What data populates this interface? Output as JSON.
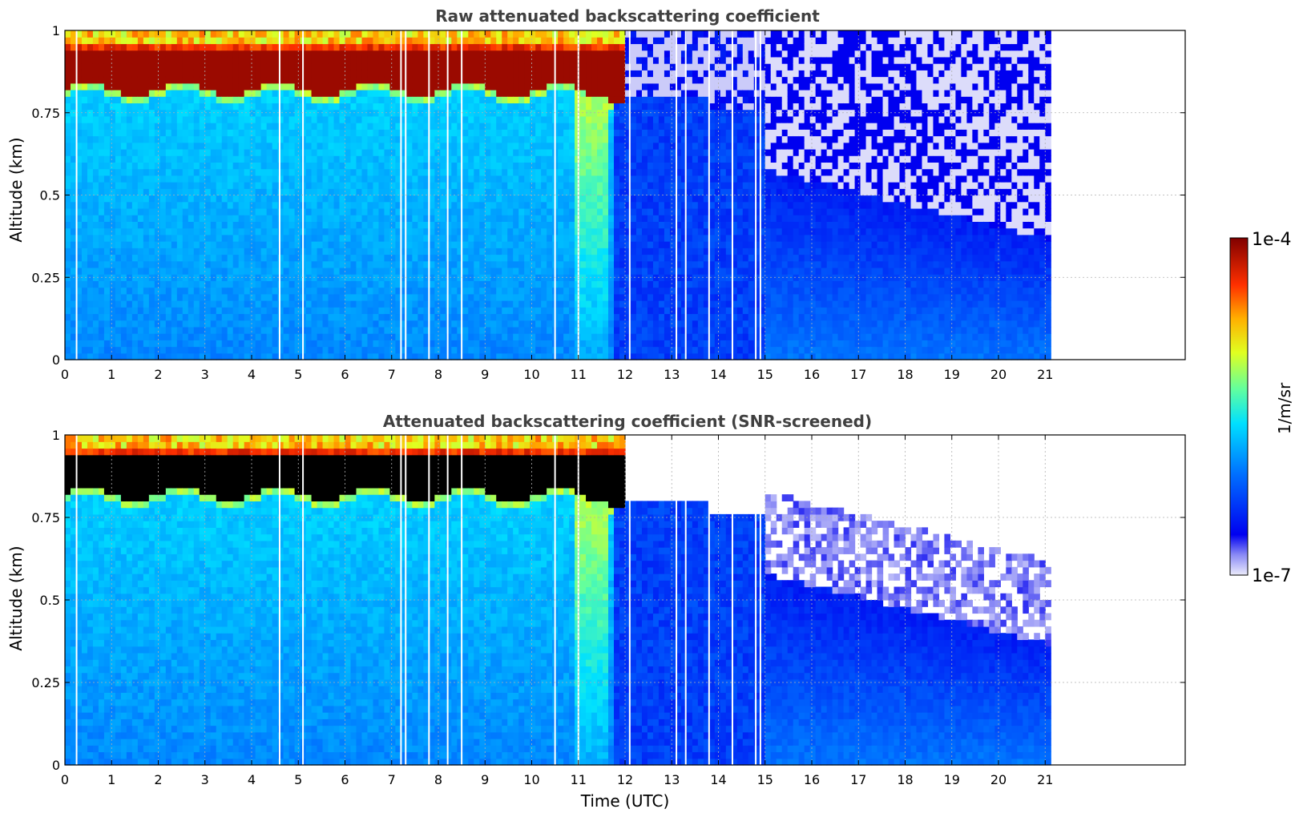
{
  "figure": {
    "colorbar": {
      "label": "1/m/sr",
      "max_label": "1e-4",
      "min_label": "1e-7",
      "range": [
        1e-07,
        0.0001
      ],
      "scale": "log",
      "colormap": "jet"
    }
  },
  "chart_data": [
    {
      "type": "heatmap",
      "title": "Raw attenuated backscattering coefficient",
      "xlabel": "",
      "ylabel": "Altitude (km)",
      "xlim": [
        0,
        24
      ],
      "ylim": [
        0,
        1
      ],
      "xticks": [
        0,
        1,
        2,
        3,
        4,
        5,
        6,
        7,
        8,
        9,
        10,
        11,
        12,
        13,
        14,
        15,
        16,
        17,
        18,
        19,
        20,
        21
      ],
      "yticks": [
        0,
        0.25,
        0.5,
        0.75,
        1
      ],
      "ytick_labels": [
        "0",
        "0.25",
        "0.5",
        "0.75",
        "1"
      ],
      "grid": true,
      "data_end_hour": 21.1,
      "cloud_layer_km": [
        0.82,
        0.98
      ],
      "cloud_end_hour": 12.0,
      "data_gaps_hours": [
        0.25,
        4.6,
        5.1,
        7.2,
        7.3,
        7.8,
        8.2,
        8.5,
        10.5,
        11.0,
        12.1,
        13.1,
        13.3,
        13.8,
        14.3,
        14.8,
        14.9
      ]
    },
    {
      "type": "heatmap",
      "title": "Attenuated backscattering coefficient (SNR-screened)",
      "xlabel": "Time (UTC)",
      "ylabel": "Altitude (km)",
      "xlim": [
        0,
        24
      ],
      "ylim": [
        0,
        1
      ],
      "xticks": [
        0,
        1,
        2,
        3,
        4,
        5,
        6,
        7,
        8,
        9,
        10,
        11,
        12,
        13,
        14,
        15,
        16,
        17,
        18,
        19,
        20,
        21
      ],
      "yticks": [
        0,
        0.25,
        0.5,
        0.75,
        1
      ],
      "ytick_labels": [
        "0",
        "0.25",
        "0.5",
        "0.75",
        "1"
      ],
      "grid": true,
      "data_end_hour": 21.1,
      "cloud_layer_km": [
        0.82,
        0.98
      ],
      "cloud_end_hour": 12.0,
      "data_gaps_hours": [
        0.25,
        4.6,
        5.1,
        7.2,
        7.3,
        7.8,
        8.2,
        8.5,
        10.5,
        11.0,
        12.1,
        13.1,
        13.3,
        13.8,
        14.3,
        14.8,
        14.9
      ]
    }
  ]
}
